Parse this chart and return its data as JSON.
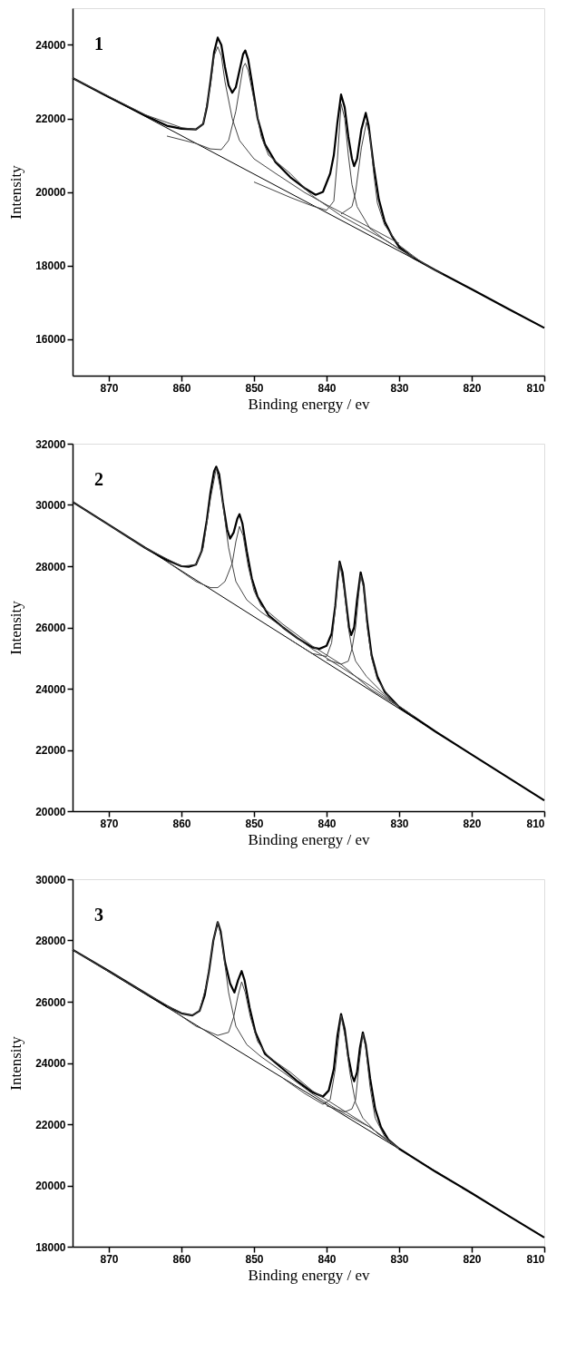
{
  "chart_data": [
    {
      "type": "line",
      "xlabel": "Binding energy / ev",
      "ylabel": "Intensity",
      "annotations": [
        "1"
      ],
      "xlim": [
        875,
        810
      ],
      "xticks": [
        870,
        860,
        850,
        840,
        830,
        820,
        810
      ],
      "ylim": [
        15000,
        25000
      ],
      "yticks": [
        16000,
        18000,
        20000,
        22000,
        24000
      ],
      "line_style": "solid",
      "series": [
        {
          "color": "#000000",
          "x": [
            875,
            870,
            865,
            862,
            860,
            858,
            857,
            856.5,
            856,
            855.5,
            855,
            854.5,
            854,
            853.5,
            853,
            852.5,
            852,
            851.5,
            851.2,
            850.8,
            850.3,
            849.5,
            848.5,
            847,
            845,
            843,
            841.5,
            840.5,
            839.5,
            839,
            838.5,
            838,
            837.5,
            837,
            836.5,
            836.2,
            835.8,
            835.2,
            834.6,
            834.2,
            833.5,
            832.8,
            832,
            831,
            830,
            828,
            825,
            820,
            815,
            810
          ],
          "values": [
            23100,
            22580,
            22080,
            21800,
            21720,
            21700,
            21850,
            22300,
            23000,
            23800,
            24200,
            24000,
            23400,
            22900,
            22700,
            22850,
            23300,
            23750,
            23850,
            23600,
            23000,
            22000,
            21300,
            20800,
            20400,
            20100,
            19920,
            20000,
            20500,
            21000,
            21900,
            22650,
            22300,
            21500,
            20900,
            20700,
            20900,
            21700,
            22150,
            21800,
            20700,
            19800,
            19200,
            18800,
            18500,
            18200,
            17870,
            17350,
            16820,
            16300
          ]
        },
        {
          "color": "#000000",
          "x": [
            875,
            810
          ],
          "values": [
            23100,
            16300
          ]
        },
        {
          "color": "#444444",
          "x": [
            875,
            865,
            860,
            858,
            857,
            856,
            855.5,
            855,
            854.5,
            854,
            853,
            852,
            850,
            847,
            843,
            840,
            835,
            830
          ],
          "values": [
            23100,
            22100,
            21750,
            21700,
            21850,
            22900,
            23700,
            23950,
            23700,
            23000,
            22000,
            21400,
            20900,
            20500,
            19980,
            19650,
            19130,
            18600
          ]
        },
        {
          "color": "#444444",
          "x": [
            862,
            858,
            856,
            854.5,
            853.5,
            852.5,
            852,
            851.5,
            851.2,
            850.8,
            850,
            849,
            848,
            845,
            842,
            838,
            832,
            828
          ],
          "values": [
            21520,
            21320,
            21170,
            21150,
            21400,
            22200,
            22800,
            23400,
            23500,
            23300,
            22500,
            21500,
            21000,
            20500,
            19900,
            19350,
            18700,
            18200
          ]
        },
        {
          "color": "#444444",
          "x": [
            850,
            845,
            842,
            840,
            839,
            838.5,
            838,
            837.5,
            837,
            836.5,
            835.8,
            834,
            832,
            830,
            826
          ],
          "values": [
            20270,
            19850,
            19620,
            19500,
            19750,
            20900,
            22400,
            22000,
            21000,
            20200,
            19600,
            19000,
            18700,
            18450,
            18000
          ]
        },
        {
          "color": "#444444",
          "x": [
            838,
            836.5,
            836,
            835.2,
            834.5,
            834,
            833.5,
            833,
            832,
            830,
            827,
            824
          ],
          "values": [
            19400,
            19600,
            20000,
            21200,
            21900,
            21500,
            20500,
            19700,
            19100,
            18550,
            18100,
            17750
          ]
        }
      ]
    },
    {
      "type": "line",
      "xlabel": "Binding energy / ev",
      "ylabel": "Intensity",
      "annotations": [
        "2"
      ],
      "xlim": [
        875,
        810
      ],
      "xticks": [
        870,
        860,
        850,
        840,
        830,
        820,
        810
      ],
      "ylim": [
        20000,
        32000
      ],
      "yticks": [
        20000,
        22000,
        24000,
        26000,
        28000,
        30000,
        32000
      ],
      "line_style": "solid",
      "series": [
        {
          "color": "#000000",
          "x": [
            875,
            870,
            865,
            862,
            860,
            859,
            858,
            857.2,
            856.5,
            856,
            855.5,
            855.2,
            854.8,
            854.3,
            853.7,
            853.3,
            852.8,
            852.3,
            852,
            851.6,
            851,
            850.3,
            849.5,
            848,
            846,
            844,
            842,
            841,
            840,
            839.3,
            838.8,
            838.5,
            838.2,
            837.8,
            837.3,
            836.9,
            836.6,
            836.2,
            835.8,
            835.3,
            834.9,
            834.4,
            833.8,
            833,
            832,
            830,
            825,
            820,
            815,
            810
          ],
          "values": [
            30100,
            29350,
            28600,
            28200,
            28000,
            27980,
            28050,
            28500,
            29500,
            30400,
            31100,
            31250,
            31000,
            30100,
            29200,
            28900,
            29100,
            29550,
            29700,
            29400,
            28500,
            27600,
            27000,
            26400,
            26000,
            25650,
            25350,
            25300,
            25400,
            25800,
            26700,
            27500,
            28150,
            27800,
            26800,
            26000,
            25750,
            26000,
            26900,
            27800,
            27400,
            26200,
            25100,
            24400,
            23900,
            23400,
            22600,
            21850,
            21100,
            20350
          ]
        },
        {
          "color": "#000000",
          "x": [
            875,
            810
          ],
          "values": [
            30100,
            20350
          ]
        },
        {
          "color": "#444444",
          "x": [
            875,
            865,
            860,
            858,
            857,
            856,
            855.2,
            854.5,
            853.5,
            852.5,
            851,
            849,
            846,
            842,
            838,
            834,
            830
          ],
          "values": [
            30100,
            28600,
            28000,
            28050,
            28600,
            30200,
            31200,
            30400,
            28600,
            27500,
            26900,
            26500,
            26000,
            25300,
            24700,
            24100,
            23400
          ]
        },
        {
          "color": "#444444",
          "x": [
            862,
            858,
            856,
            855,
            854,
            853,
            852.5,
            852,
            851.5,
            850.8,
            850,
            849,
            846,
            842,
            838,
            834,
            830
          ],
          "values": [
            28150,
            27500,
            27300,
            27300,
            27500,
            28100,
            28800,
            29300,
            29000,
            28000,
            27200,
            26700,
            26100,
            25400,
            24800,
            24000,
            23400
          ]
        },
        {
          "color": "#444444",
          "x": [
            845,
            842,
            840,
            839.3,
            838.8,
            838.2,
            837.6,
            837,
            836.5,
            836,
            834.5,
            832,
            830
          ],
          "values": [
            25600,
            25150,
            25050,
            25500,
            26600,
            28100,
            27300,
            26000,
            25300,
            24900,
            24400,
            23800,
            23400
          ]
        },
        {
          "color": "#444444",
          "x": [
            840,
            838,
            837,
            836.5,
            836,
            835.6,
            835.3,
            834.9,
            834.4,
            833.8,
            833,
            831,
            828
          ],
          "values": [
            24950,
            24800,
            24900,
            25300,
            26000,
            27000,
            27700,
            27300,
            26000,
            25000,
            24300,
            23600,
            23100
          ]
        }
      ]
    },
    {
      "type": "line",
      "xlabel": "Binding energy / ev",
      "ylabel": "Intensity",
      "annotations": [
        "3"
      ],
      "xlim": [
        875,
        810
      ],
      "xticks": [
        870,
        860,
        850,
        840,
        830,
        820,
        810
      ],
      "ylim": [
        18000,
        30000
      ],
      "yticks": [
        18000,
        20000,
        22000,
        24000,
        26000,
        28000,
        30000
      ],
      "line_style": "solid",
      "series": [
        {
          "color": "#000000",
          "x": [
            875,
            870,
            865,
            862,
            860,
            858.5,
            857.5,
            856.8,
            856.2,
            855.6,
            855,
            854.6,
            854,
            853.3,
            852.7,
            852.2,
            851.7,
            851.3,
            850.6,
            849.8,
            848.5,
            846,
            844,
            842,
            840.5,
            839.7,
            839,
            838.5,
            838,
            837.5,
            837,
            836.5,
            836.2,
            835.8,
            835.4,
            835,
            834.6,
            834,
            833.3,
            832.5,
            831.5,
            830,
            825,
            820,
            815,
            810
          ],
          "values": [
            27700,
            27000,
            26280,
            25850,
            25620,
            25550,
            25700,
            26200,
            27000,
            28000,
            28600,
            28300,
            27300,
            26600,
            26300,
            26700,
            27000,
            26700,
            25800,
            25000,
            24300,
            23800,
            23400,
            23050,
            22900,
            23100,
            23800,
            24900,
            25600,
            25100,
            24200,
            23600,
            23400,
            23700,
            24500,
            25000,
            24600,
            23500,
            22500,
            21900,
            21500,
            21200,
            20450,
            19750,
            19020,
            18300
          ]
        },
        {
          "color": "#000000",
          "x": [
            875,
            810
          ],
          "values": [
            27700,
            18300
          ]
        },
        {
          "color": "#444444",
          "x": [
            875,
            865,
            860,
            858.5,
            857.5,
            856.5,
            855.5,
            855,
            854.5,
            853.5,
            852.5,
            851,
            849,
            846,
            842,
            838,
            834,
            830
          ],
          "values": [
            27700,
            26280,
            25620,
            25550,
            25700,
            26600,
            28100,
            28600,
            28100,
            26300,
            25200,
            24600,
            24200,
            23700,
            23000,
            22400,
            21900,
            21200
          ]
        },
        {
          "color": "#444444",
          "x": [
            862,
            858,
            855,
            853.5,
            852.8,
            852.2,
            851.7,
            851.2,
            850.5,
            849.5,
            848,
            845,
            842,
            838,
            834,
            830
          ],
          "values": [
            25850,
            25200,
            24900,
            25000,
            25500,
            26200,
            26650,
            26300,
            25500,
            24700,
            24200,
            23700,
            23100,
            22500,
            21900,
            21200
          ]
        },
        {
          "color": "#444444",
          "x": [
            846,
            843,
            840.5,
            839.5,
            838.8,
            838,
            837.4,
            836.8,
            836,
            835,
            833,
            830
          ],
          "values": [
            23500,
            23000,
            22650,
            22800,
            23800,
            25550,
            24800,
            23700,
            22700,
            22200,
            21700,
            21200
          ]
        },
        {
          "color": "#444444",
          "x": [
            840,
            837.5,
            836.5,
            836,
            835.5,
            835,
            834.6,
            834,
            833.3,
            832,
            830
          ],
          "values": [
            22600,
            22400,
            22500,
            22800,
            24000,
            24950,
            24500,
            23200,
            22200,
            21600,
            21200
          ]
        }
      ]
    }
  ]
}
